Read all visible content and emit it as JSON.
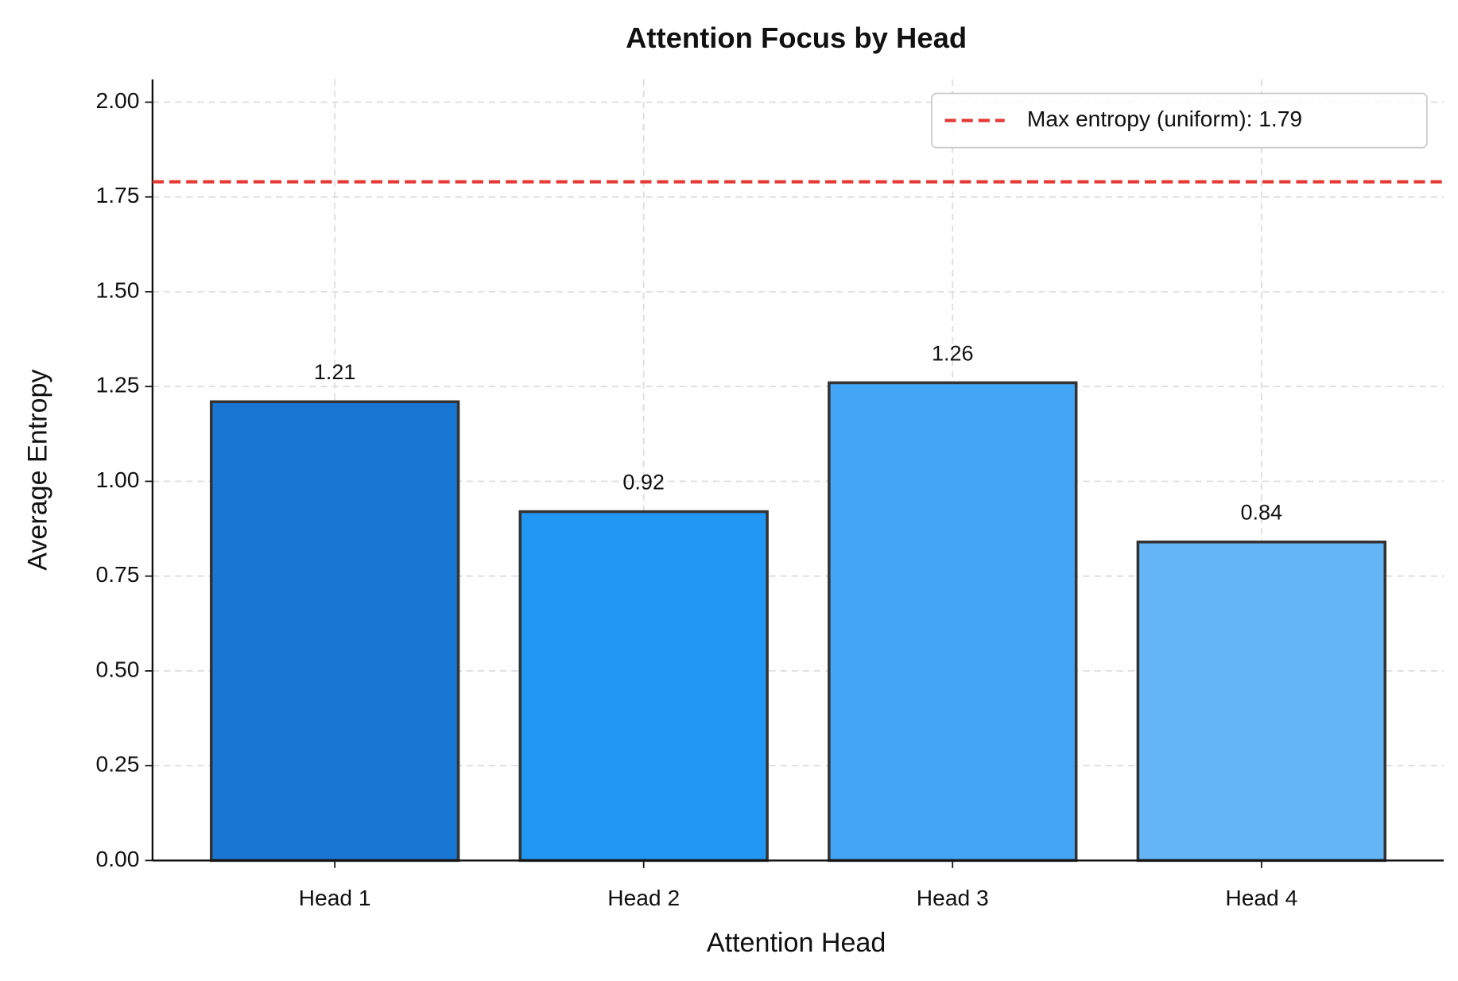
{
  "chart_data": {
    "type": "bar",
    "title": "Attention Focus by Head",
    "x_label": "Attention Head",
    "y_label": "Average Entropy",
    "categories": [
      "Head 1",
      "Head 2",
      "Head 3",
      "Head 4"
    ],
    "values": [
      1.21,
      0.92,
      1.26,
      0.84
    ],
    "colors": [
      "#1976d2",
      "#2196f3",
      "#42a5f5",
      "#64b5f6"
    ],
    "edge_color": "#333333",
    "ylim": [
      0,
      2.06
    ],
    "yticks": [
      {
        "value": 0,
        "label": "0.00"
      },
      {
        "value": 0.25,
        "label": "0.25"
      },
      {
        "value": 0.5,
        "label": "0.50"
      },
      {
        "value": 0.75,
        "label": "0.75"
      },
      {
        "value": 1,
        "label": "1.00"
      },
      {
        "value": 1.25,
        "label": "1.25"
      },
      {
        "value": 1.5,
        "label": "1.50"
      },
      {
        "value": 1.75,
        "label": "1.75"
      },
      {
        "value": 2,
        "label": "2.00"
      }
    ],
    "hlines": [
      {
        "value": 1.79,
        "label": "Max entropy (uniform): 1.79",
        "color": "#e53935"
      }
    ],
    "grid": true,
    "legend": "upper right"
  }
}
